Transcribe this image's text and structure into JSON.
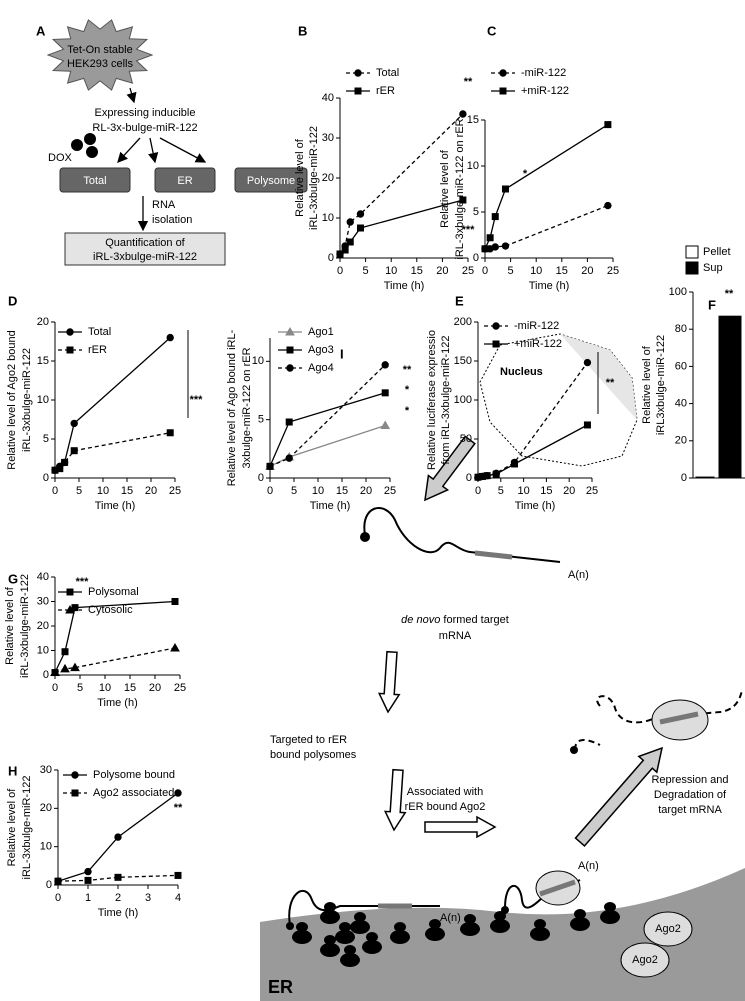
{
  "chart_data": [
    {
      "type": "line",
      "panel": "B",
      "ylabel": [
        "Relative level of",
        "iRL-3xbulge-miR-122"
      ],
      "xlabel": "Time (h)",
      "x": [
        0,
        1,
        2,
        4,
        24
      ],
      "xlim": [
        0,
        25
      ],
      "xticks": [
        0,
        5,
        10,
        15,
        20,
        25
      ],
      "ylim": [
        0,
        40
      ],
      "yticks": [
        0,
        10,
        20,
        30,
        40
      ],
      "series": [
        {
          "name": "Total",
          "color": "#000000",
          "marker": "circle",
          "dashed": true,
          "values": [
            1,
            3,
            9,
            11,
            36
          ]
        },
        {
          "name": "rER",
          "color": "#000000",
          "marker": "square",
          "dashed": false,
          "values": [
            1,
            2,
            4,
            7.5,
            14.5
          ]
        }
      ],
      "annotations": [
        "**",
        "***"
      ]
    },
    {
      "type": "line",
      "panel": "C",
      "ylabel": [
        "Relative level of",
        "iRL-3xbulge-miR-122 on rER"
      ],
      "xlabel": "Time (h)",
      "x": [
        0,
        1,
        2,
        4,
        24
      ],
      "xlim": [
        0,
        25
      ],
      "xticks": [
        0,
        5,
        10,
        15,
        20,
        25
      ],
      "ylim": [
        0,
        15
      ],
      "yticks": [
        0,
        5,
        10,
        15
      ],
      "series": [
        {
          "name": "-miR-122",
          "color": "#000000",
          "marker": "circle",
          "dashed": true,
          "values": [
            1,
            1,
            1.2,
            1.3,
            5.7
          ]
        },
        {
          "name": "+miR-122",
          "color": "#000000",
          "marker": "square",
          "dashed": false,
          "values": [
            1,
            2.2,
            4.5,
            7.5,
            14.5
          ]
        }
      ],
      "annotations": [
        "*"
      ]
    },
    {
      "type": "line",
      "panel": "D",
      "ylabel": [
        "Relative level of Ago2 bound",
        "iRL-3xbulge-miR-122"
      ],
      "xlabel": "Time (h)",
      "x": [
        0,
        1,
        2,
        4,
        24
      ],
      "xlim": [
        0,
        25
      ],
      "xticks": [
        0,
        5,
        10,
        15,
        20,
        25
      ],
      "ylim": [
        0,
        20
      ],
      "yticks": [
        0,
        5,
        10,
        15,
        20
      ],
      "series": [
        {
          "name": "Total",
          "color": "#000000",
          "marker": "circle",
          "dashed": false,
          "values": [
            1,
            1.5,
            2,
            7,
            18
          ]
        },
        {
          "name": "rER",
          "color": "#000000",
          "marker": "square",
          "dashed": true,
          "values": [
            1,
            1.2,
            2,
            3.5,
            5.8
          ]
        }
      ],
      "annotations": [
        "***"
      ]
    },
    {
      "type": "line",
      "ylabel": [
        "Relative level of Ago bound iRL-",
        "3xbulge-miR-122 on rER"
      ],
      "xlabel": "Time (h)",
      "x": [
        0,
        4,
        24
      ],
      "xlim": [
        0,
        25
      ],
      "xticks": [
        0,
        5,
        10,
        15,
        20,
        25
      ],
      "ylim": [
        0,
        12
      ],
      "yticks": [
        0,
        5,
        10
      ],
      "series": [
        {
          "name": "Ago1",
          "color": "#888888",
          "marker": "triangle",
          "dashed": false,
          "values": [
            1,
            1.8,
            4.5
          ]
        },
        {
          "name": "Ago3",
          "color": "#000000",
          "marker": "square",
          "dashed": false,
          "values": [
            1,
            4.8,
            7.3
          ]
        },
        {
          "name": "Ago4",
          "color": "#000000",
          "marker": "circle",
          "dashed": true,
          "values": [
            1,
            1.7,
            9.7
          ]
        }
      ],
      "annotations": [
        "**",
        "*",
        "*"
      ]
    },
    {
      "type": "line",
      "panel": "E",
      "ylabel": [
        "Relative luciferase expressio",
        "from iRL-3xbulge-miR-122"
      ],
      "xlabel": "Time (h)",
      "x": [
        0,
        1,
        2,
        4,
        8,
        24
      ],
      "xlim": [
        0,
        25
      ],
      "xticks": [
        0,
        5,
        10,
        15,
        20,
        25
      ],
      "ylim": [
        0,
        200
      ],
      "yticks": [
        0,
        50,
        100,
        150,
        200
      ],
      "series": [
        {
          "name": "-miR-122",
          "color": "#000000",
          "marker": "circle",
          "dashed": true,
          "values": [
            1,
            2,
            3,
            6,
            20,
            148
          ]
        },
        {
          "name": "+miR-122",
          "color": "#000000",
          "marker": "square",
          "dashed": false,
          "values": [
            1,
            2,
            3,
            5,
            18,
            68
          ]
        }
      ],
      "annotations": [
        "**"
      ]
    },
    {
      "type": "bar",
      "panel": "F",
      "ylabel": [
        "Relative level of",
        "iRL3xbulge-miR-122"
      ],
      "ylim": [
        0,
        100
      ],
      "yticks": [
        0,
        20,
        40,
        60,
        80,
        100
      ],
      "series": [
        {
          "name": "Pellet",
          "color": "#ffffff",
          "values": [
            0.5
          ]
        },
        {
          "name": "Sup",
          "color": "#000000",
          "values": [
            87
          ]
        }
      ],
      "annotations": [
        "**"
      ]
    },
    {
      "type": "line",
      "panel": "G",
      "ylabel": [
        "Relative level of",
        "iRL-3xbulge-miR-122"
      ],
      "xlabel": "Time (h)",
      "x": [
        0,
        2,
        4,
        24
      ],
      "xlim": [
        0,
        25
      ],
      "xticks": [
        0,
        5,
        10,
        15,
        20,
        25
      ],
      "ylim": [
        0,
        40
      ],
      "yticks": [
        0,
        10,
        20,
        30,
        40
      ],
      "series": [
        {
          "name": "Polysomal",
          "color": "#000000",
          "marker": "square",
          "dashed": false,
          "values": [
            1,
            9.5,
            27.5,
            30
          ]
        },
        {
          "name": "Cytosolic",
          "color": "#000000",
          "marker": "triangle",
          "dashed": true,
          "values": [
            1,
            2.5,
            3,
            11
          ]
        }
      ],
      "annotations": [
        "***"
      ]
    },
    {
      "type": "line",
      "panel": "H",
      "ylabel": [
        "Relative level of",
        "iRL-3xbulge-miR-122"
      ],
      "xlabel": "Time (h)",
      "x": [
        0,
        1,
        2,
        4
      ],
      "xlim": [
        0,
        4
      ],
      "xticks": [
        0,
        1,
        2,
        3,
        4
      ],
      "ylim": [
        0,
        30
      ],
      "yticks": [
        0,
        10,
        20,
        30
      ],
      "series": [
        {
          "name": "Polysome bound",
          "color": "#000000",
          "marker": "circle",
          "dashed": false,
          "values": [
            1,
            3.5,
            12.5,
            24
          ]
        },
        {
          "name": "Ago2 associated",
          "color": "#000000",
          "marker": "square",
          "dashed": true,
          "values": [
            1,
            1.2,
            2,
            2.5
          ]
        }
      ],
      "annotations": [
        "**"
      ]
    }
  ],
  "panel_a": {
    "label": "A",
    "cell_line": [
      "Tet-On stable",
      "HEK293 cells"
    ],
    "construct": [
      "Expressing inducible",
      "RL-3x-bulge-miR-122"
    ],
    "inducer": "DOX",
    "fractions": [
      "Total",
      "ER",
      "Polysome"
    ],
    "step": [
      "RNA",
      "isolation"
    ],
    "readout": [
      "Quantification of",
      "iRL-3xbulge-miR-122"
    ]
  },
  "panel_i": {
    "label": "I",
    "nucleus": "Nucleus",
    "mrna_caption": {
      "italic": "de novo",
      "rest": "formed target",
      "line2": "mRNA"
    },
    "poly_a": "A(n)",
    "step1": [
      "Targeted to rER",
      "bound polysomes"
    ],
    "step2": [
      "Associated  with",
      "rER bound Ago2"
    ],
    "step3": [
      "Repression and",
      "Degradation of",
      "target mRNA"
    ],
    "ago": "Ago2",
    "organelle": "ER"
  }
}
